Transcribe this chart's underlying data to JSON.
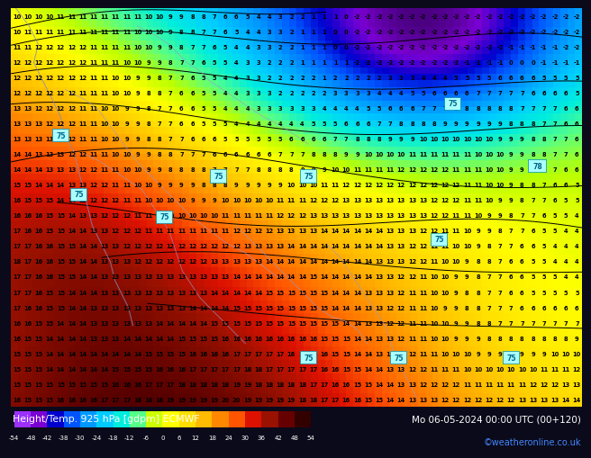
{
  "title_left": "Height/Temp. 925 hPa [gdpm] ECMWF",
  "title_right": "Mo 06-05-2024 00:00 UTC (00+120)",
  "credit": "©weatheronline.co.uk",
  "colorbar_values": [
    -54,
    -48,
    -42,
    -38,
    -30,
    -24,
    -18,
    -12,
    -6,
    0,
    6,
    12,
    18,
    24,
    30,
    36,
    42,
    48,
    54
  ],
  "colorbar_colors": [
    "#9B30FF",
    "#7B00D4",
    "#0000CD",
    "#0055FF",
    "#0099FF",
    "#00CCFF",
    "#00EEDD",
    "#00FF99",
    "#99FF00",
    "#FFFF00",
    "#FFE000",
    "#FFBB00",
    "#FF8800",
    "#FF4400",
    "#CC1100",
    "#991100",
    "#660000",
    "#330000"
  ],
  "bottom_bar_color": "#1A1A2E",
  "map_number_rows": 26,
  "map_number_cols": 52
}
